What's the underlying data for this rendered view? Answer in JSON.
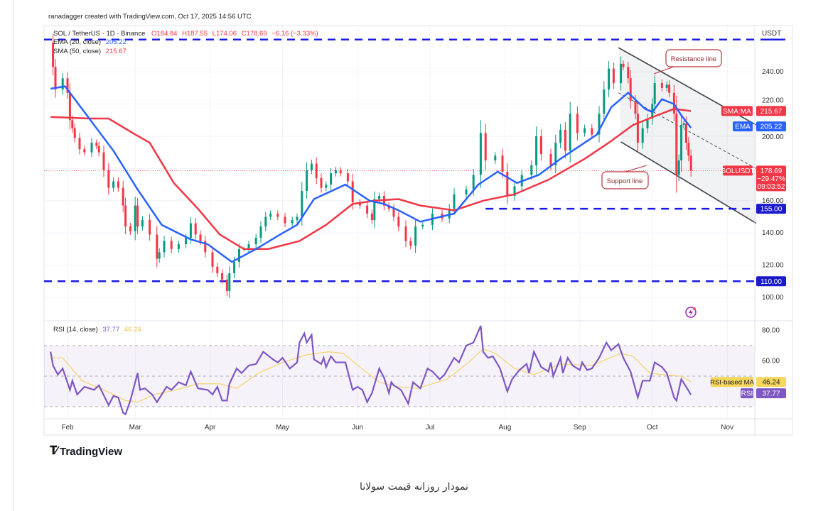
{
  "header": {
    "credit": "ranadagger created with TradingView.com, Oct 17, 2025 14:56 UTC",
    "symbol": "SOL / TetherUS · 1D · Binance",
    "open": "O184.84",
    "high": "H187.55",
    "low": "L174.06",
    "close": "C178.69",
    "change": "−6.16 (−3.33%)"
  },
  "legend": {
    "ema_label": "EMA (20, close)",
    "ema_value": "205.22",
    "sma_label": "SMA (50, close)",
    "sma_value": "215.67",
    "rsi_label": "RSI (14, close)",
    "rsi_value": "37.77",
    "rsi_ma_value": "46.24"
  },
  "axis": {
    "currency": "USDT",
    "price_ticks": [
      "240.00",
      "220.00",
      "200.00",
      "160.00",
      "140.00",
      "120.00",
      "100.00"
    ],
    "price_tick_values": [
      240,
      220,
      200,
      160,
      140,
      120,
      100
    ],
    "rsi_ticks": [
      "80.00",
      "60.00"
    ],
    "rsi_tick_values": [
      80,
      60
    ],
    "months": [
      "Feb",
      "Mar",
      "Apr",
      "May",
      "Jun",
      "Jul",
      "Aug",
      "Sep",
      "Oct",
      "Nov"
    ],
    "month_days": [
      0,
      28,
      59,
      89,
      120,
      150,
      181,
      212,
      242,
      273
    ]
  },
  "tags": {
    "sma_name": "SMA:MA",
    "sma_value": "215.67",
    "ema_name": "EMA",
    "ema_value": "205.22",
    "symbol_name": "SOLUSDT",
    "price": "178.69",
    "pct": "−29.47%",
    "countdown": "09:03:52",
    "level_155": "155.00",
    "level_110": "110.00",
    "rsi_ma_name": "RSI-based MA",
    "rsi_ma_value": "46.24",
    "rsi_name": "RSI",
    "rsi_value": "37.77"
  },
  "annotations": {
    "resistance": "Resistance line",
    "support": "Support line"
  },
  "colors": {
    "up": "#089981",
    "down": "#f23645",
    "ema": "#2962ff",
    "sma": "#f23645",
    "level": "#1a1ae6",
    "rsi": "#7e57c2",
    "rsi_ma": "#f5d36a"
  },
  "footer": {
    "logo": "TradingView",
    "caption": "نمودار روزانه قیمت سولانا"
  },
  "chart_data": [
    {
      "type": "line",
      "title": "SOL / TetherUS · 1D · Binance",
      "x_unit": "days since Feb 1, 2025",
      "ylim": [
        90,
        262
      ],
      "xlim": [
        -8,
        285
      ],
      "grid": true,
      "close": [
        [
          -7,
          258
        ],
        [
          -6,
          243
        ],
        [
          -5,
          229
        ],
        [
          -2,
          236
        ],
        [
          0,
          227
        ],
        [
          1,
          210
        ],
        [
          2,
          205
        ],
        [
          3,
          199
        ],
        [
          5,
          192
        ],
        [
          7,
          190
        ],
        [
          10,
          196
        ],
        [
          12,
          194
        ],
        [
          13,
          190
        ],
        [
          15,
          179
        ],
        [
          17,
          168
        ],
        [
          19,
          172
        ],
        [
          21,
          168
        ],
        [
          23,
          157
        ],
        [
          24,
          144
        ],
        [
          26,
          141
        ],
        [
          28,
          157
        ],
        [
          29,
          144
        ],
        [
          31,
          148
        ],
        [
          34,
          139
        ],
        [
          37,
          124
        ],
        [
          38,
          128
        ],
        [
          40,
          135
        ],
        [
          43,
          130
        ],
        [
          46,
          133
        ],
        [
          49,
          137
        ],
        [
          51,
          146
        ],
        [
          53,
          139
        ],
        [
          55,
          135
        ],
        [
          57,
          128
        ],
        [
          60,
          119
        ],
        [
          62,
          115
        ],
        [
          64,
          111
        ],
        [
          66,
          104
        ],
        [
          67,
          115
        ],
        [
          69,
          122
        ],
        [
          71,
          130
        ],
        [
          73,
          130
        ],
        [
          75,
          133
        ],
        [
          78,
          137
        ],
        [
          80,
          144
        ],
        [
          82,
          150
        ],
        [
          84,
          152
        ],
        [
          87,
          150
        ],
        [
          90,
          146
        ],
        [
          93,
          148
        ],
        [
          95,
          150
        ],
        [
          97,
          166
        ],
        [
          99,
          179
        ],
        [
          101,
          183
        ],
        [
          103,
          174
        ],
        [
          105,
          168
        ],
        [
          107,
          170
        ],
        [
          109,
          177
        ],
        [
          111,
          179
        ],
        [
          113,
          177
        ],
        [
          116,
          172
        ],
        [
          118,
          159
        ],
        [
          121,
          157
        ],
        [
          124,
          152
        ],
        [
          126,
          148
        ],
        [
          127,
          161
        ],
        [
          129,
          163
        ],
        [
          131,
          157
        ],
        [
          133,
          155
        ],
        [
          135,
          150
        ],
        [
          137,
          144
        ],
        [
          140,
          135
        ],
        [
          142,
          132
        ],
        [
          144,
          144
        ],
        [
          147,
          145
        ],
        [
          151,
          152
        ],
        [
          155,
          149
        ],
        [
          158,
          155
        ],
        [
          160,
          164
        ],
        [
          165,
          167
        ],
        [
          168,
          176
        ],
        [
          171,
          202
        ],
        [
          173,
          185
        ],
        [
          177,
          188
        ],
        [
          180,
          178
        ],
        [
          182,
          163
        ],
        [
          185,
          169
        ],
        [
          188,
          176
        ],
        [
          192,
          182
        ],
        [
          194,
          200
        ],
        [
          196,
          189
        ],
        [
          200,
          182
        ],
        [
          202,
          196
        ],
        [
          204,
          204
        ],
        [
          206,
          191
        ],
        [
          208,
          214
        ],
        [
          211,
          202
        ],
        [
          214,
          205
        ],
        [
          217,
          201
        ],
        [
          220,
          214
        ],
        [
          222,
          229
        ],
        [
          224,
          242
        ],
        [
          226,
          233
        ],
        [
          229,
          245
        ],
        [
          230,
          243
        ],
        [
          232,
          236
        ],
        [
          233,
          222
        ],
        [
          235,
          214
        ],
        [
          236,
          196
        ],
        [
          238,
          205
        ],
        [
          240,
          211
        ],
        [
          242,
          220
        ],
        [
          243,
          233
        ],
        [
          246,
          230
        ],
        [
          248,
          232
        ],
        [
          249,
          227
        ],
        [
          251,
          214
        ],
        [
          252,
          176
        ],
        [
          253,
          185
        ],
        [
          254,
          207
        ],
        [
          255,
          208
        ],
        [
          256,
          196
        ],
        [
          257,
          188
        ],
        [
          258,
          178.69
        ]
      ],
      "ema20": [
        [
          -7,
          229.5
        ],
        [
          -1,
          231
        ],
        [
          9,
          211
        ],
        [
          19,
          191
        ],
        [
          29,
          167
        ],
        [
          39,
          145
        ],
        [
          51,
          136
        ],
        [
          58,
          133
        ],
        [
          68,
          122
        ],
        [
          78,
          130
        ],
        [
          88,
          139
        ],
        [
          95,
          145
        ],
        [
          102,
          161
        ],
        [
          115,
          170
        ],
        [
          125,
          160
        ],
        [
          131,
          158
        ],
        [
          137,
          154
        ],
        [
          146,
          147
        ],
        [
          160,
          152
        ],
        [
          170,
          170
        ],
        [
          178,
          178
        ],
        [
          186,
          171
        ],
        [
          195,
          176
        ],
        [
          204,
          186
        ],
        [
          214,
          196
        ],
        [
          219,
          201
        ],
        [
          225,
          218
        ],
        [
          232,
          227
        ],
        [
          239,
          217
        ],
        [
          242,
          215
        ],
        [
          246,
          223
        ],
        [
          251,
          220
        ],
        [
          254,
          213
        ],
        [
          258,
          205.22
        ]
      ],
      "sma50": [
        [
          -7,
          212
        ],
        [
          9,
          211
        ],
        [
          17,
          211
        ],
        [
          27,
          202
        ],
        [
          34,
          196
        ],
        [
          44,
          171
        ],
        [
          54,
          155
        ],
        [
          63,
          139
        ],
        [
          73,
          130
        ],
        [
          83,
          130
        ],
        [
          96,
          135
        ],
        [
          107,
          145
        ],
        [
          118,
          158
        ],
        [
          127,
          160
        ],
        [
          137,
          161
        ],
        [
          146,
          157
        ],
        [
          160,
          154
        ],
        [
          172,
          160
        ],
        [
          185,
          164
        ],
        [
          199,
          173
        ],
        [
          214,
          186
        ],
        [
          224,
          196
        ],
        [
          234,
          207
        ],
        [
          244,
          213
        ],
        [
          251,
          217
        ],
        [
          258,
          215.67
        ]
      ],
      "levels": [
        260,
        155,
        110
      ],
      "level_155_start_day": 173,
      "resistance_line": [
        [
          228,
          255
        ],
        [
          285,
          207
        ]
      ],
      "support_line": [
        [
          229,
          196.5
        ],
        [
          285,
          146
        ]
      ],
      "channel_midline": [
        [
          228,
          227
        ],
        [
          285,
          180
        ]
      ]
    },
    {
      "type": "line",
      "title": "RSI (14, close)",
      "ylim": [
        20,
        85
      ],
      "bands": [
        30,
        50,
        70
      ],
      "rsi": [
        [
          -7,
          66
        ],
        [
          -6,
          57
        ],
        [
          -4,
          51
        ],
        [
          -2,
          55
        ],
        [
          1,
          41
        ],
        [
          2,
          47
        ],
        [
          4,
          38
        ],
        [
          7,
          43
        ],
        [
          11,
          41
        ],
        [
          13,
          44
        ],
        [
          17,
          31
        ],
        [
          19,
          37
        ],
        [
          21,
          36
        ],
        [
          23,
          26
        ],
        [
          24,
          25
        ],
        [
          26,
          34
        ],
        [
          29,
          52
        ],
        [
          30,
          41
        ],
        [
          32,
          42
        ],
        [
          35,
          38
        ],
        [
          37,
          33
        ],
        [
          41,
          43
        ],
        [
          43,
          41
        ],
        [
          46,
          46
        ],
        [
          49,
          44
        ],
        [
          51,
          53
        ],
        [
          54,
          42
        ],
        [
          58,
          41
        ],
        [
          60,
          38
        ],
        [
          62,
          43
        ],
        [
          64,
          34
        ],
        [
          66,
          34
        ],
        [
          67,
          45
        ],
        [
          70,
          55
        ],
        [
          72,
          52
        ],
        [
          75,
          57
        ],
        [
          78,
          58
        ],
        [
          81,
          66
        ],
        [
          85,
          61
        ],
        [
          87,
          59
        ],
        [
          89,
          62
        ],
        [
          92,
          55
        ],
        [
          95,
          59
        ],
        [
          96,
          72
        ],
        [
          98,
          78
        ],
        [
          99,
          72
        ],
        [
          101,
          77
        ],
        [
          102,
          61
        ],
        [
          105,
          58
        ],
        [
          106,
          62
        ],
        [
          107,
          56
        ],
        [
          109,
          63
        ],
        [
          111,
          59
        ],
        [
          115,
          59
        ],
        [
          118,
          41
        ],
        [
          120,
          43
        ],
        [
          122,
          41
        ],
        [
          124,
          33
        ],
        [
          126,
          39
        ],
        [
          129,
          55
        ],
        [
          131,
          49
        ],
        [
          133,
          39
        ],
        [
          134,
          46
        ],
        [
          135,
          44
        ],
        [
          138,
          41
        ],
        [
          141,
          32
        ],
        [
          143,
          46
        ],
        [
          146,
          42
        ],
        [
          149,
          55
        ],
        [
          151,
          53
        ],
        [
          154,
          48
        ],
        [
          156,
          51
        ],
        [
          160,
          62
        ],
        [
          162,
          59
        ],
        [
          165,
          70
        ],
        [
          168,
          72
        ],
        [
          171,
          83
        ],
        [
          172,
          66
        ],
        [
          174,
          62
        ],
        [
          176,
          63
        ],
        [
          179,
          55
        ],
        [
          182,
          40
        ],
        [
          184,
          48
        ],
        [
          187,
          54
        ],
        [
          190,
          58
        ],
        [
          191,
          52
        ],
        [
          193,
          66
        ],
        [
          196,
          56
        ],
        [
          199,
          53
        ],
        [
          200,
          59
        ],
        [
          201,
          50
        ],
        [
          204,
          62
        ],
        [
          205,
          52
        ],
        [
          207,
          62
        ],
        [
          209,
          57
        ],
        [
          212,
          54
        ],
        [
          213,
          59
        ],
        [
          215,
          54
        ],
        [
          217,
          55
        ],
        [
          220,
          62
        ],
        [
          223,
          72
        ],
        [
          225,
          67
        ],
        [
          228,
          71
        ],
        [
          230,
          62
        ],
        [
          233,
          53
        ],
        [
          236,
          36
        ],
        [
          238,
          47
        ],
        [
          241,
          47
        ],
        [
          243,
          59
        ],
        [
          246,
          56
        ],
        [
          248,
          52
        ],
        [
          251,
          36
        ],
        [
          252,
          34
        ],
        [
          254,
          48
        ],
        [
          256,
          43
        ],
        [
          258,
          37.77
        ]
      ],
      "rsi_ma": [
        [
          -7,
          62
        ],
        [
          -2,
          62
        ],
        [
          6,
          47
        ],
        [
          15,
          41
        ],
        [
          24,
          34
        ],
        [
          29,
          33
        ],
        [
          36,
          38
        ],
        [
          45,
          41
        ],
        [
          54,
          45
        ],
        [
          63,
          45
        ],
        [
          70,
          42
        ],
        [
          79,
          52
        ],
        [
          89,
          59
        ],
        [
          99,
          64
        ],
        [
          108,
          66
        ],
        [
          114,
          65
        ],
        [
          121,
          56
        ],
        [
          129,
          46
        ],
        [
          137,
          43
        ],
        [
          145,
          42
        ],
        [
          157,
          48
        ],
        [
          166,
          59
        ],
        [
          172,
          68
        ],
        [
          177,
          65
        ],
        [
          185,
          55
        ],
        [
          193,
          51
        ],
        [
          204,
          58
        ],
        [
          217,
          57
        ],
        [
          229,
          65
        ],
        [
          234,
          63
        ],
        [
          241,
          52
        ],
        [
          246,
          51
        ],
        [
          254,
          50
        ],
        [
          258,
          46.24
        ]
      ]
    }
  ]
}
